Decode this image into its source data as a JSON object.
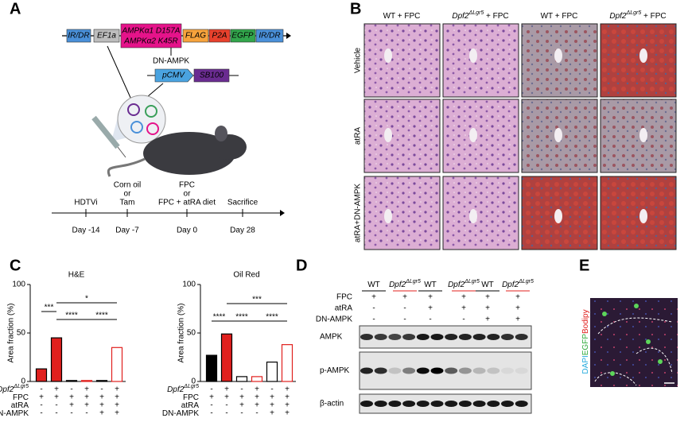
{
  "panel_labels": [
    "A",
    "B",
    "C",
    "D",
    "E"
  ],
  "panel_a": {
    "construct": [
      "IR/DR",
      "EF1a",
      "AMPKα1 D157A",
      "AMPKα2 K45R",
      "FLAG",
      "P2A",
      "EGFP",
      "IR/DR"
    ],
    "construct_name": "DN-AMPK",
    "transposase": [
      "pCMV",
      "SB100"
    ],
    "timeline": [
      {
        "event": [
          "HDTVi"
        ],
        "day": "Day -14"
      },
      {
        "event": [
          "Corn oil",
          "or",
          "Tam"
        ],
        "day": "Day -7"
      },
      {
        "event": [
          "FPC",
          "or",
          "FPC + atRA diet"
        ],
        "day": "Day 0"
      },
      {
        "event": [
          "Sacrifice"
        ],
        "day": "Day 28"
      }
    ]
  },
  "panel_b": {
    "columns": [
      {
        "text": "WT + FPC"
      },
      {
        "gene": "Dpf2",
        "sup": "ΔLgr5",
        "text": " + FPC"
      },
      {
        "text": "WT + FPC"
      },
      {
        "gene": "Dpf2",
        "sup": "ΔLgr5",
        "text": " + FPC"
      }
    ],
    "rows": [
      "Vehicle",
      "atRA",
      "atRA+DN-AMPK"
    ]
  },
  "panel_c": {
    "y_label": "Area fraction (%)",
    "conditions": [
      {
        "gene": "Dpf2",
        "sup": "ΔLgr5",
        "signs": [
          "-",
          "+",
          "-",
          "+",
          "-",
          "+"
        ]
      },
      {
        "text": "FPC",
        "signs": [
          "+",
          "+",
          "+",
          "+",
          "+",
          "+"
        ]
      },
      {
        "text": "atRA",
        "signs": [
          "-",
          "-",
          "+",
          "+",
          "+",
          "+"
        ]
      },
      {
        "text": "DN-AMPK",
        "signs": [
          "-",
          "-",
          "-",
          "-",
          "+",
          "+"
        ]
      }
    ],
    "charts": [
      {
        "type": "bar",
        "title": "H&E",
        "values": [
          13,
          45,
          1,
          1,
          1,
          35
        ],
        "fills": [
          "#e0201e",
          "#e0201e",
          "#ffffff",
          "#ffffff",
          "#ffffff",
          "#ffffff"
        ],
        "strokes": [
          "#000000",
          "#000000",
          "#000000",
          "#e0201e",
          "#000000",
          "#e0201e"
        ],
        "ylim": [
          0,
          100
        ],
        "yticks": [
          0,
          50,
          100
        ],
        "significance": [
          "***",
          "*",
          "****",
          "****"
        ]
      },
      {
        "type": "bar",
        "title": "Oil Red",
        "values": [
          27,
          49,
          5,
          5,
          20,
          38
        ],
        "fills": [
          "#000000",
          "#e0201e",
          "#ffffff",
          "#ffffff",
          "#ffffff",
          "#ffffff"
        ],
        "strokes": [
          "#000000",
          "#000000",
          "#000000",
          "#e0201e",
          "#000000",
          "#e0201e"
        ],
        "ylim": [
          0,
          100
        ],
        "yticks": [
          0,
          50,
          100
        ],
        "significance": [
          "****",
          "***",
          "****",
          "****"
        ]
      }
    ]
  },
  "panel_d": {
    "lanes": [
      {
        "text": "WT"
      },
      {
        "gene": "Dpf2",
        "sup": "ΔLgr5"
      },
      {
        "text": "WT"
      },
      {
        "gene": "Dpf2",
        "sup": "ΔLgr5"
      },
      {
        "text": "WT"
      },
      {
        "gene": "Dpf2",
        "sup": "ΔLgr5"
      }
    ],
    "conditions": [
      {
        "text": "FPC",
        "signs": [
          "+",
          "+",
          "+",
          "+",
          "+",
          "+"
        ]
      },
      {
        "text": "atRA",
        "signs": [
          "-",
          "-",
          "+",
          "+",
          "+",
          "+"
        ]
      },
      {
        "text": "DN-AMPK",
        "signs": [
          "-",
          "-",
          "-",
          "-",
          "+",
          "+"
        ]
      }
    ],
    "blots": [
      "AMPK",
      "p-AMPK",
      "β-actin"
    ]
  },
  "panel_e": {
    "stains": [
      "DAPI",
      "EGFP",
      "Bodipy"
    ]
  }
}
